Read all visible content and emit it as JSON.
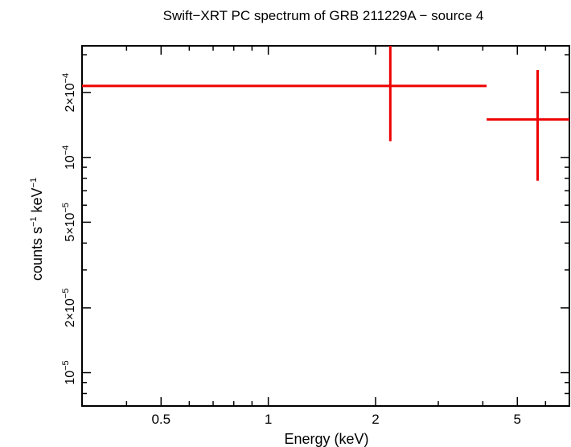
{
  "chart_data": {
    "type": "scatter",
    "title": "Swift−XRT PC spectrum of GRB 211229A − source 4",
    "xlabel": "Energy (keV)",
    "ylabel": {
      "base": "counts s",
      "sup1": "−1",
      "mid": " keV",
      "sup2": "−1"
    },
    "xscale": "log",
    "yscale": "log",
    "xlim": [
      0.3,
      7.0
    ],
    "ylim": [
      7e-06,
      0.00033
    ],
    "x_ticks": [
      {
        "value": 0.5,
        "label": "0.5"
      },
      {
        "value": 1,
        "label": "1"
      },
      {
        "value": 2,
        "label": "2"
      },
      {
        "value": 5,
        "label": "5"
      }
    ],
    "y_ticks": [
      {
        "value": 1e-05,
        "mantissa": "",
        "exponent": "−5",
        "label": "10−5"
      },
      {
        "value": 2e-05,
        "mantissa": "2×",
        "exponent": "−5",
        "label": "2×10−5"
      },
      {
        "value": 5e-05,
        "mantissa": "5×",
        "exponent": "−5",
        "label": "5×10−5"
      },
      {
        "value": 0.0001,
        "mantissa": "",
        "exponent": "−4",
        "label": "10−4"
      },
      {
        "value": 0.0002,
        "mantissa": "2×",
        "exponent": "−4",
        "label": "2×10−4"
      }
    ],
    "series": [
      {
        "name": "source 4",
        "color": "#ee0000",
        "points": [
          {
            "x": 2.2,
            "x_lo": 0.3,
            "x_hi": 4.1,
            "y": 0.000215,
            "y_lo": 0.000119,
            "y_hi": 0.00033
          },
          {
            "x": 5.7,
            "x_lo": 4.1,
            "x_hi": 7.0,
            "y": 0.00015,
            "y_lo": 7.8e-05,
            "y_hi": 0.000255
          }
        ]
      }
    ]
  }
}
